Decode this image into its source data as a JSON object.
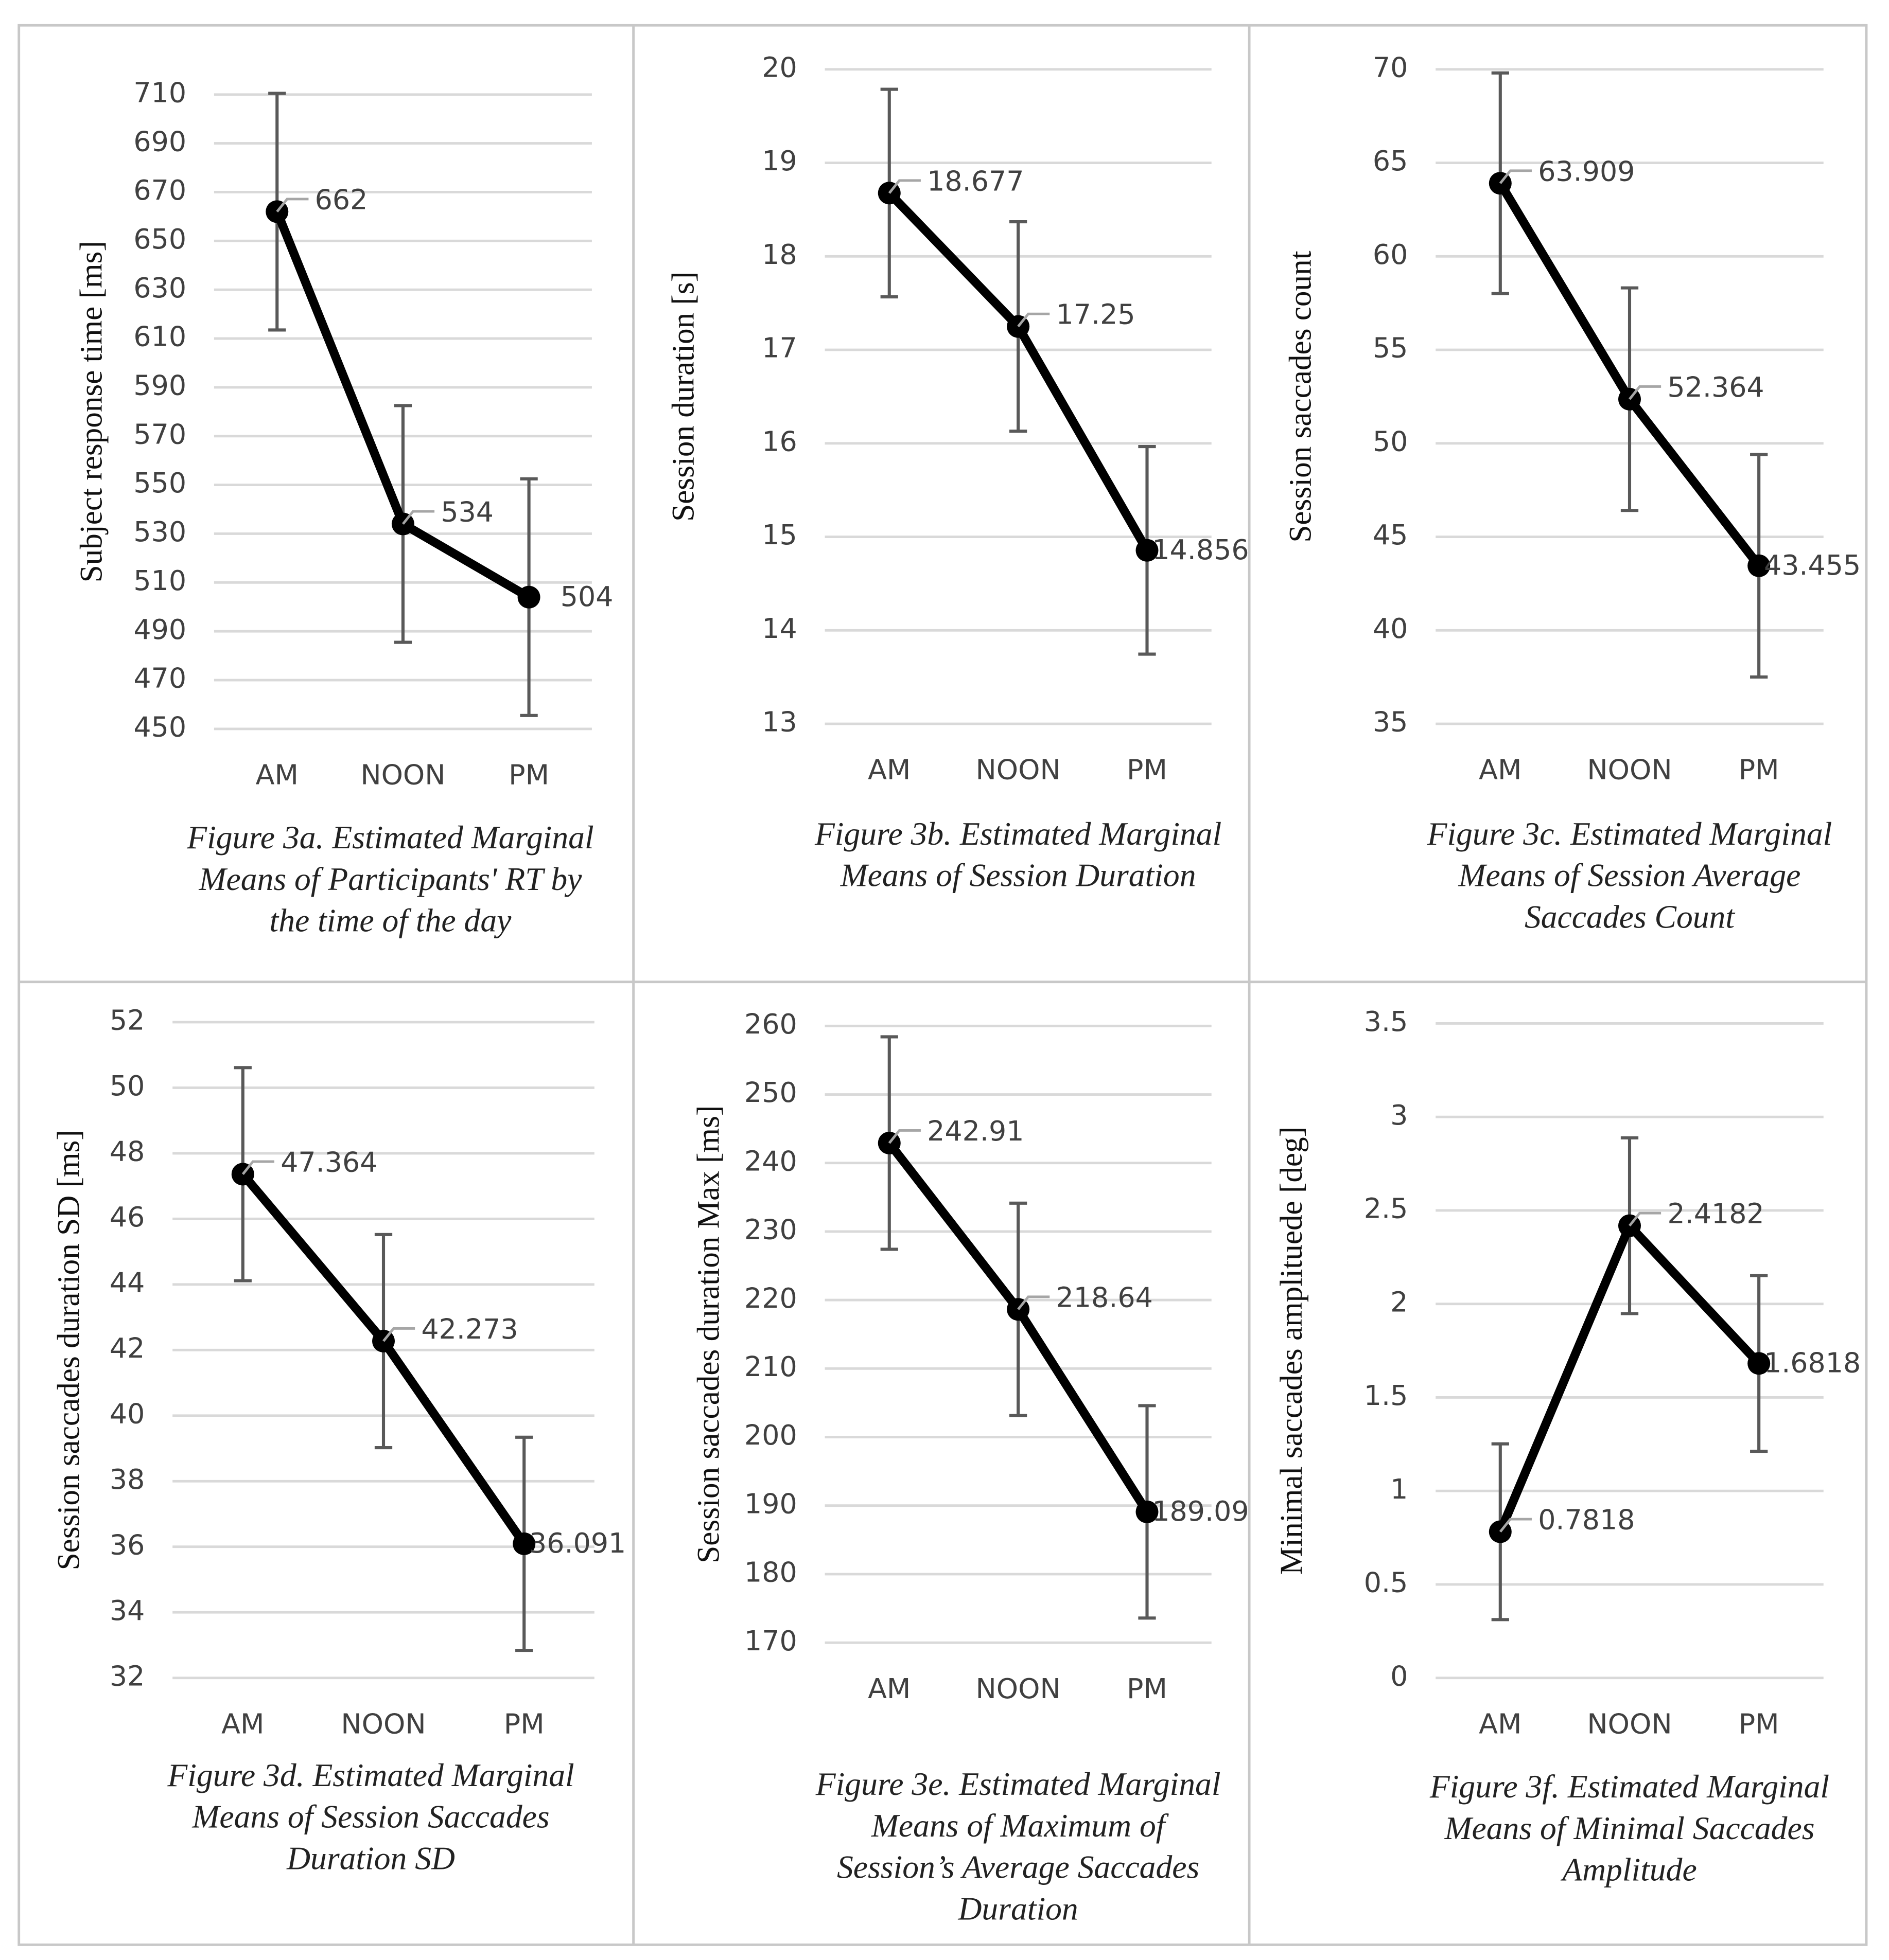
{
  "chart_data": [
    {
      "type": "line",
      "y_label": "Subject response time [ms]",
      "categories": [
        "AM",
        "NOON",
        "PM"
      ],
      "values": [
        662,
        534,
        504
      ],
      "errors": [
        48.5,
        48.5,
        48.5
      ],
      "color": "#000000",
      "ylim": [
        450,
        710
      ],
      "yticks": [
        450,
        470,
        490,
        510,
        530,
        550,
        570,
        590,
        610,
        630,
        650,
        670,
        690,
        710
      ],
      "grid": true,
      "caption": [
        "Figure 3a. Estimated Marginal",
        "Means of Participants' RT by",
        "the time of the day"
      ]
    },
    {
      "type": "line",
      "y_label": "Session duration [s]",
      "categories": [
        "AM",
        "NOON",
        "PM"
      ],
      "values": [
        18.677,
        17.25,
        14.856
      ],
      "errors": [
        1.11,
        1.12,
        1.11
      ],
      "color": "#000000",
      "ylim": [
        13,
        20
      ],
      "yticks": [
        13,
        14,
        15,
        16,
        17,
        18,
        19,
        20
      ],
      "grid": true,
      "caption": [
        "Figure 3b. Estimated Marginal",
        "Means of Session Duration"
      ]
    },
    {
      "type": "line",
      "y_label": "Session saccades count",
      "categories": [
        "AM",
        "NOON",
        "PM"
      ],
      "values": [
        63.909,
        52.364,
        43.455
      ],
      "errors": [
        5.9,
        5.95,
        5.95
      ],
      "color": "#000000",
      "ylim": [
        35,
        70
      ],
      "yticks": [
        35,
        40,
        45,
        50,
        55,
        60,
        65,
        70
      ],
      "grid": true,
      "caption": [
        "Figure 3c. Estimated Marginal",
        "Means of Session Average",
        "Saccades Count"
      ]
    },
    {
      "type": "line",
      "y_label": "Session saccades duration SD [ms]",
      "categories": [
        "AM",
        "NOON",
        "PM"
      ],
      "values": [
        47.364,
        42.273,
        36.091
      ],
      "errors": [
        3.25,
        3.25,
        3.25
      ],
      "color": "#000000",
      "ylim": [
        32,
        52
      ],
      "yticks": [
        32,
        34,
        36,
        38,
        40,
        42,
        44,
        46,
        48,
        50,
        52
      ],
      "grid": true,
      "caption": [
        "Figure 3d. Estimated Marginal",
        "Means of Session Saccades",
        "Duration SD"
      ]
    },
    {
      "type": "line",
      "y_label": "Session saccades duration Max [ms]",
      "categories": [
        "AM",
        "NOON",
        "PM"
      ],
      "values": [
        242.91,
        218.64,
        189.09
      ],
      "errors": [
        15.5,
        15.5,
        15.5
      ],
      "color": "#000000",
      "ylim": [
        170,
        260
      ],
      "yticks": [
        170,
        180,
        190,
        200,
        210,
        220,
        230,
        240,
        250,
        260
      ],
      "grid": true,
      "caption": [
        "Figure 3e. Estimated Marginal",
        "Means of Maximum of",
        "Session’s Average Saccades",
        "Duration"
      ]
    },
    {
      "type": "line",
      "y_label": "Minimal saccades amplituede [deg]",
      "categories": [
        "AM",
        "NOON",
        "PM"
      ],
      "values": [
        0.7818,
        2.4182,
        1.6818
      ],
      "errors": [
        0.47,
        0.47,
        0.47
      ],
      "color": "#000000",
      "ylim": [
        0,
        3.5
      ],
      "yticks": [
        0,
        0.5,
        1,
        1.5,
        2,
        2.5,
        3,
        3.5
      ],
      "grid": true,
      "caption": [
        "Figure 3f. Estimated Marginal",
        "Means of Minimal Saccades",
        "Amplitude"
      ]
    }
  ]
}
